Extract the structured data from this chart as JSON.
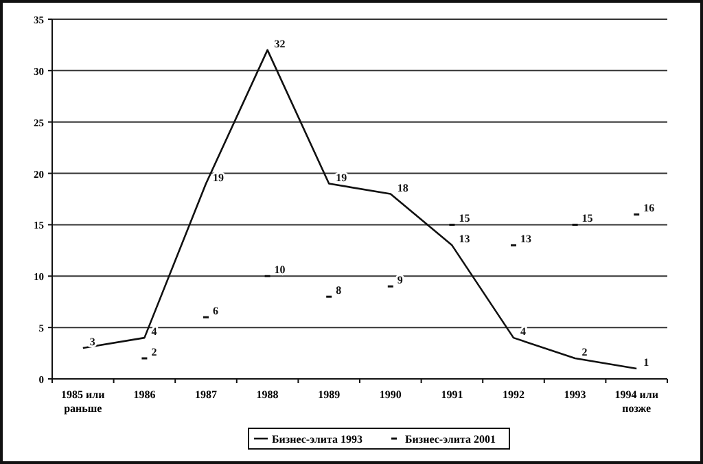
{
  "chart_data": {
    "type": "line",
    "categories": [
      "1985 или раньше",
      "1986",
      "1987",
      "1988",
      "1989",
      "1990",
      "1991",
      "1992",
      "1993",
      "1994 или позже"
    ],
    "series": [
      {
        "name": "Бизнес-элита 1993",
        "color": "#111111",
        "values": [
          3,
          4,
          19,
          32,
          19,
          18,
          13,
          4,
          2,
          1
        ]
      },
      {
        "name": "Бизнес-элита 2001",
        "type": "scatter",
        "marker": "square",
        "color": "#111111",
        "values": [
          null,
          2,
          6,
          10,
          8,
          9,
          15,
          13,
          15,
          16
        ]
      }
    ],
    "ylim": [
      0,
      35
    ],
    "yticks": [
      0,
      5,
      10,
      15,
      20,
      25,
      30,
      35
    ],
    "grid": "y",
    "legend": "bottom",
    "data_labels": true,
    "line_style": "solid"
  }
}
